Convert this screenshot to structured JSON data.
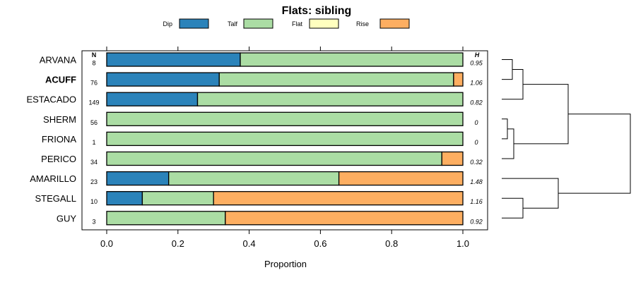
{
  "chart_data": {
    "type": "bar",
    "orientation": "horizontal",
    "stacked": true,
    "title": "Flats: sibling",
    "xlabel": "Proportion",
    "ylabel": "",
    "xlim": [
      0,
      1
    ],
    "xticks": [
      "0.0",
      "0.2",
      "0.4",
      "0.6",
      "0.8",
      "1.0"
    ],
    "n_header": "N",
    "h_header": "H",
    "legend_position": "top",
    "series": [
      {
        "name": "Dip",
        "color": "#2b83ba"
      },
      {
        "name": "Talf",
        "color": "#abdda4"
      },
      {
        "name": "Flat",
        "color": "#ffffbf"
      },
      {
        "name": "Rise",
        "color": "#fdae61"
      }
    ],
    "rows": [
      {
        "name": "ARVANA",
        "bold": false,
        "n": "8",
        "h": "0.95",
        "values": [
          0.375,
          0.625,
          0,
          0
        ]
      },
      {
        "name": "ACUFF",
        "bold": true,
        "n": "76",
        "h": "1.06",
        "values": [
          0.316,
          0.658,
          0,
          0.026
        ]
      },
      {
        "name": "ESTACADO",
        "bold": false,
        "n": "149",
        "h": "0.82",
        "values": [
          0.255,
          0.745,
          0,
          0
        ]
      },
      {
        "name": "SHERM",
        "bold": false,
        "n": "56",
        "h": "0",
        "values": [
          0,
          1.0,
          0,
          0
        ]
      },
      {
        "name": "FRIONA",
        "bold": false,
        "n": "1",
        "h": "0",
        "values": [
          0,
          1.0,
          0,
          0
        ]
      },
      {
        "name": "PERICO",
        "bold": false,
        "n": "34",
        "h": "0.32",
        "values": [
          0,
          0.941,
          0,
          0.059
        ]
      },
      {
        "name": "AMARILLO",
        "bold": false,
        "n": "23",
        "h": "1.48",
        "values": [
          0.174,
          0.478,
          0,
          0.348
        ]
      },
      {
        "name": "STEGALL",
        "bold": false,
        "n": "10",
        "h": "1.16",
        "values": [
          0.1,
          0.2,
          0,
          0.7
        ]
      },
      {
        "name": "GUY",
        "bold": false,
        "n": "3",
        "h": "0.92",
        "values": [
          0,
          0.333,
          0,
          0.667
        ]
      }
    ]
  }
}
